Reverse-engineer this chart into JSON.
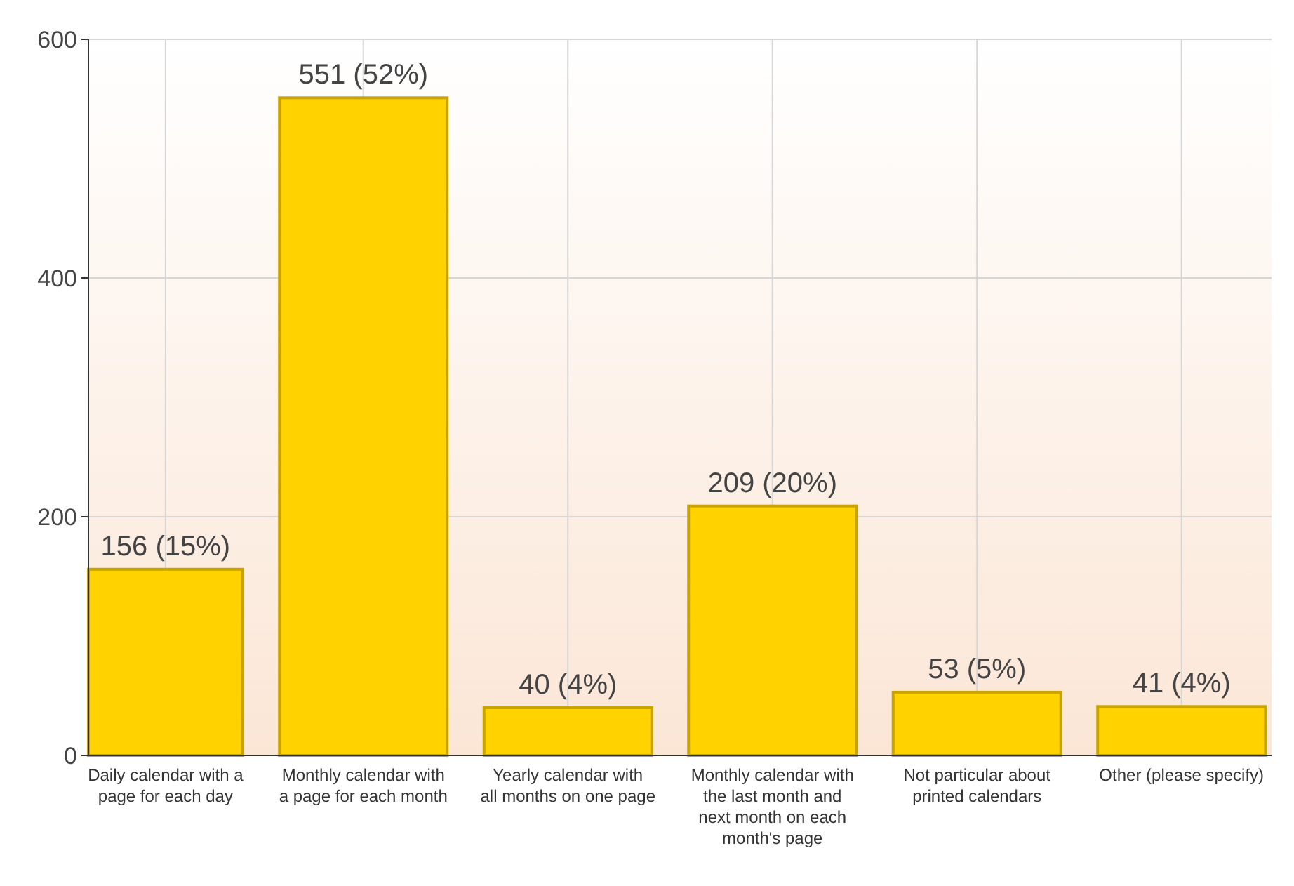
{
  "chart_data": {
    "type": "bar",
    "categories": [
      "Daily calendar with a page for each day",
      "Monthly calendar with a page for each month",
      "Yearly calendar with all months on one page",
      "Monthly calendar with the last month and next month on each month's page",
      "Not particular about printed calendars",
      "Other (please specify)"
    ],
    "values": [
      156,
      551,
      40,
      209,
      53,
      41
    ],
    "value_labels": [
      "156 (15%)",
      "551 (52%)",
      "40 (4%)",
      "209 (20%)",
      "53 (5%)",
      "41 (4%)"
    ],
    "color": "#ffd200",
    "ylim": [
      0,
      600
    ],
    "yticks": [
      0,
      200,
      400,
      600
    ],
    "grid": true
  }
}
